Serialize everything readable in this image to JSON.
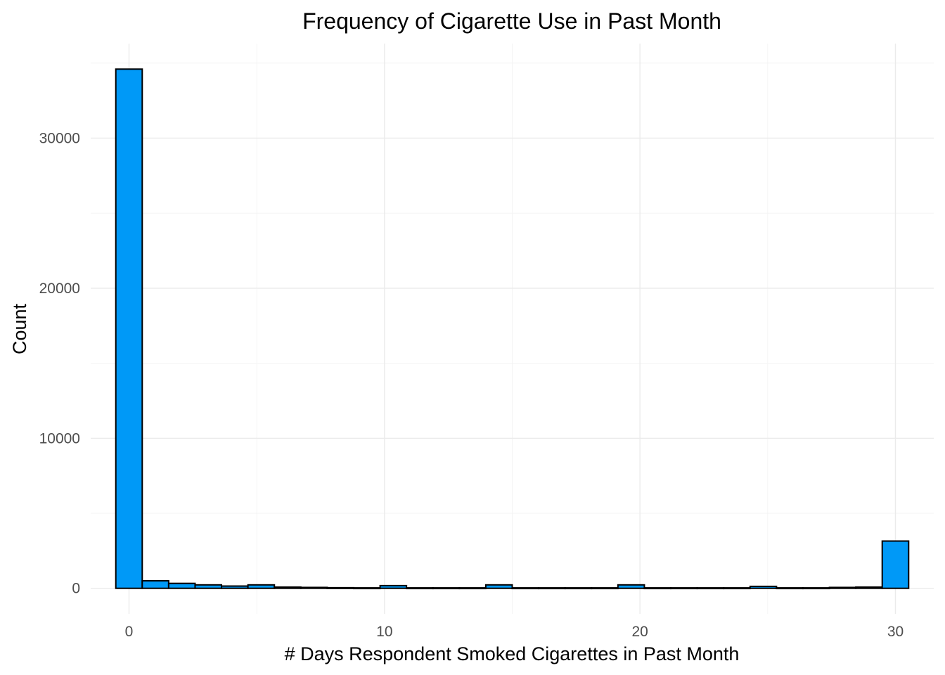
{
  "chart_data": {
    "type": "bar",
    "title": "Frequency of Cigarette Use in Past Month",
    "xlabel": "# Days Respondent Smoked Cigarettes in Past Month",
    "ylabel": "Count",
    "xlim": [
      -1.5,
      31.5
    ],
    "ylim": [
      -1700,
      36300
    ],
    "x_ticks": [
      0,
      10,
      20,
      30
    ],
    "y_ticks": [
      0,
      10000,
      20000,
      30000
    ],
    "x_tick_labels": [
      "0",
      "10",
      "20",
      "30"
    ],
    "y_tick_labels": [
      "0",
      "10000",
      "20000",
      "30000"
    ],
    "grid": true,
    "legend": "none",
    "bin_width": 1.0345,
    "bins": [
      {
        "x": 0.0,
        "count": 34600
      },
      {
        "x": 1.0345,
        "count": 500
      },
      {
        "x": 2.069,
        "count": 330
      },
      {
        "x": 3.1034,
        "count": 230
      },
      {
        "x": 4.1379,
        "count": 150
      },
      {
        "x": 5.1724,
        "count": 230
      },
      {
        "x": 6.2069,
        "count": 80
      },
      {
        "x": 7.2414,
        "count": 60
      },
      {
        "x": 8.2759,
        "count": 40
      },
      {
        "x": 9.3103,
        "count": 30
      },
      {
        "x": 10.3448,
        "count": 180
      },
      {
        "x": 11.3793,
        "count": 30
      },
      {
        "x": 12.4138,
        "count": 30
      },
      {
        "x": 13.4483,
        "count": 30
      },
      {
        "x": 14.4828,
        "count": 230
      },
      {
        "x": 15.5172,
        "count": 30
      },
      {
        "x": 16.5517,
        "count": 30
      },
      {
        "x": 17.5862,
        "count": 30
      },
      {
        "x": 18.6207,
        "count": 30
      },
      {
        "x": 19.6552,
        "count": 230
      },
      {
        "x": 20.6897,
        "count": 30
      },
      {
        "x": 21.7241,
        "count": 30
      },
      {
        "x": 22.7586,
        "count": 30
      },
      {
        "x": 23.7931,
        "count": 30
      },
      {
        "x": 24.8276,
        "count": 130
      },
      {
        "x": 25.8621,
        "count": 30
      },
      {
        "x": 26.8966,
        "count": 30
      },
      {
        "x": 27.931,
        "count": 60
      },
      {
        "x": 28.9655,
        "count": 80
      },
      {
        "x": 30.0,
        "count": 3150
      }
    ],
    "colors": {
      "bar_fill": "#0099F7",
      "bar_stroke": "#000000",
      "grid": "#ebebeb",
      "tick_text": "#4d4d4d",
      "text": "#000000"
    }
  }
}
